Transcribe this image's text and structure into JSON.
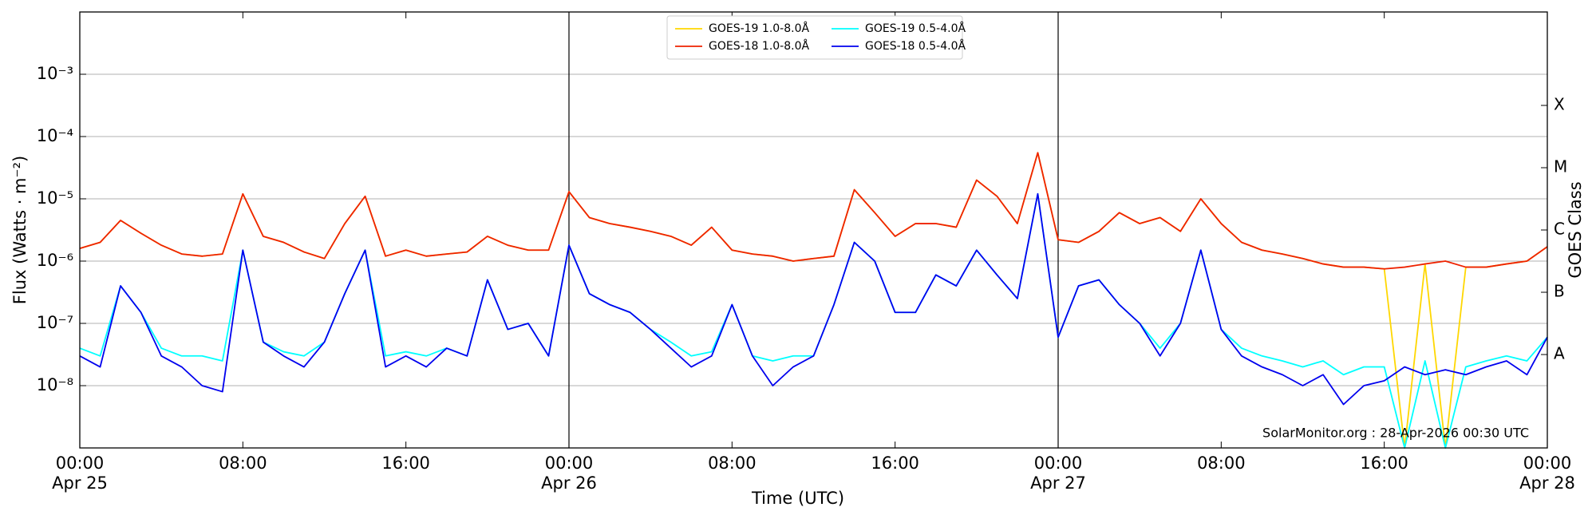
{
  "chart_data": {
    "type": "line",
    "x_label": "Time (UTC)",
    "y_label": "Flux (Watts · m⁻²)",
    "y2_label": "GOES Class",
    "annotation": "SolarMonitor.org : 28-Apr-2026 00:30 UTC",
    "log_scale": "y",
    "grid": "y",
    "legend": "upper center",
    "legend_columns": 2,
    "xlim": [
      "Apr 25 00:00",
      "Apr 28 00:00"
    ],
    "xticks": [
      {
        "value": "Apr 25 00:00",
        "label": [
          "00:00",
          "Apr 25"
        ]
      },
      {
        "value": "Apr 25 08:00",
        "label": "08:00"
      },
      {
        "value": "Apr 25 16:00",
        "label": "16:00"
      },
      {
        "value": "Apr 26 00:00",
        "label": [
          "00:00",
          "Apr 26"
        ]
      },
      {
        "value": "Apr 26 08:00",
        "label": "08:00"
      },
      {
        "value": "Apr 26 16:00",
        "label": "16:00"
      },
      {
        "value": "Apr 27 00:00",
        "label": [
          "00:00",
          "Apr 27"
        ]
      },
      {
        "value": "Apr 27 08:00",
        "label": "08:00"
      },
      {
        "value": "Apr 27 16:00",
        "label": "16:00"
      },
      {
        "value": "Apr 28 00:00",
        "label": [
          "00:00",
          "Apr 28"
        ]
      }
    ],
    "vlines": [
      "Apr 26 00:00",
      "Apr 27 00:00"
    ],
    "ylim": [
      1e-09,
      0.01
    ],
    "yticks": [
      {
        "value": 1e-08,
        "label": "10⁻⁸"
      },
      {
        "value": 1e-07,
        "label": "10⁻⁷"
      },
      {
        "value": 1e-06,
        "label": "10⁻⁶"
      },
      {
        "value": 1e-05,
        "label": "10⁻⁵"
      },
      {
        "value": 0.0001,
        "label": "10⁻⁴"
      },
      {
        "value": 0.001,
        "label": "10⁻³"
      }
    ],
    "y2lim": [
      1e-09,
      0.01
    ],
    "y2ticks": [
      {
        "value": 3.16e-08,
        "label": "A"
      },
      {
        "value": 3.16e-07,
        "label": "B"
      },
      {
        "value": 3.16e-06,
        "label": "C"
      },
      {
        "value": 3.16e-05,
        "label": "M"
      },
      {
        "value": 0.000316,
        "label": "X"
      }
    ],
    "x": [
      "Apr 25 00:00",
      "Apr 25 01:00",
      "Apr 25 02:00",
      "Apr 25 03:00",
      "Apr 25 04:00",
      "Apr 25 05:00",
      "Apr 25 06:00",
      "Apr 25 07:00",
      "Apr 25 08:00",
      "Apr 25 09:00",
      "Apr 25 10:00",
      "Apr 25 11:00",
      "Apr 25 12:00",
      "Apr 25 13:00",
      "Apr 25 14:00",
      "Apr 25 15:00",
      "Apr 25 16:00",
      "Apr 25 17:00",
      "Apr 25 18:00",
      "Apr 25 19:00",
      "Apr 25 20:00",
      "Apr 25 21:00",
      "Apr 25 22:00",
      "Apr 25 23:00",
      "Apr 26 00:00",
      "Apr 26 01:00",
      "Apr 26 02:00",
      "Apr 26 03:00",
      "Apr 26 04:00",
      "Apr 26 05:00",
      "Apr 26 06:00",
      "Apr 26 07:00",
      "Apr 26 08:00",
      "Apr 26 09:00",
      "Apr 26 10:00",
      "Apr 26 11:00",
      "Apr 26 12:00",
      "Apr 26 13:00",
      "Apr 26 14:00",
      "Apr 26 15:00",
      "Apr 26 16:00",
      "Apr 26 17:00",
      "Apr 26 18:00",
      "Apr 26 19:00",
      "Apr 26 20:00",
      "Apr 26 21:00",
      "Apr 26 22:00",
      "Apr 26 23:00",
      "Apr 27 00:00",
      "Apr 27 01:00",
      "Apr 27 02:00",
      "Apr 27 03:00",
      "Apr 27 04:00",
      "Apr 27 05:00",
      "Apr 27 06:00",
      "Apr 27 07:00",
      "Apr 27 08:00",
      "Apr 27 09:00",
      "Apr 27 10:00",
      "Apr 27 11:00",
      "Apr 27 12:00",
      "Apr 27 13:00",
      "Apr 27 14:00",
      "Apr 27 15:00",
      "Apr 27 16:00",
      "Apr 27 17:00",
      "Apr 27 18:00",
      "Apr 27 19:00",
      "Apr 27 20:00",
      "Apr 27 21:00",
      "Apr 27 22:00",
      "Apr 27 23:00",
      "Apr 28 00:00"
    ],
    "series": [
      {
        "name": "GOES-19 1.0-8.0Å",
        "color": "#ffd700",
        "values": [
          1.6e-06,
          2e-06,
          4.5e-06,
          2.8e-06,
          1.8e-06,
          1.3e-06,
          1.2e-06,
          1.3e-06,
          1.2e-05,
          2.5e-06,
          2e-06,
          1.4e-06,
          1.1e-06,
          4e-06,
          1.1e-05,
          1.2e-06,
          1.5e-06,
          1.2e-06,
          1.3e-06,
          1.4e-06,
          2.5e-06,
          1.8e-06,
          1.5e-06,
          1.5e-06,
          1.3e-05,
          5e-06,
          4e-06,
          3.5e-06,
          3e-06,
          2.5e-06,
          1.8e-06,
          3.5e-06,
          1.5e-06,
          1.3e-06,
          1.2e-06,
          1e-06,
          1.1e-06,
          1.2e-06,
          1.4e-05,
          6e-06,
          2.5e-06,
          4e-06,
          4e-06,
          3.5e-06,
          2e-05,
          1.1e-05,
          4e-06,
          5.5e-05,
          2.2e-06,
          2e-06,
          3e-06,
          6e-06,
          4e-06,
          5e-06,
          3e-06,
          1e-05,
          4e-06,
          2e-06,
          1.5e-06,
          1.3e-06,
          1.1e-06,
          9e-07,
          8e-07,
          8e-07,
          7.5e-07,
          1e-09,
          9e-07,
          1e-09,
          8e-07,
          8e-07,
          9e-07,
          1e-06,
          1.7e-06
        ]
      },
      {
        "name": "GOES-18 1.0-8.0Å",
        "color": "#ee2200",
        "values": [
          1.6e-06,
          2e-06,
          4.5e-06,
          2.8e-06,
          1.8e-06,
          1.3e-06,
          1.2e-06,
          1.3e-06,
          1.2e-05,
          2.5e-06,
          2e-06,
          1.4e-06,
          1.1e-06,
          4e-06,
          1.1e-05,
          1.2e-06,
          1.5e-06,
          1.2e-06,
          1.3e-06,
          1.4e-06,
          2.5e-06,
          1.8e-06,
          1.5e-06,
          1.5e-06,
          1.3e-05,
          5e-06,
          4e-06,
          3.5e-06,
          3e-06,
          2.5e-06,
          1.8e-06,
          3.5e-06,
          1.5e-06,
          1.3e-06,
          1.2e-06,
          1e-06,
          1.1e-06,
          1.2e-06,
          1.4e-05,
          6e-06,
          2.5e-06,
          4e-06,
          4e-06,
          3.5e-06,
          2e-05,
          1.1e-05,
          4e-06,
          5.5e-05,
          2.2e-06,
          2e-06,
          3e-06,
          6e-06,
          4e-06,
          5e-06,
          3e-06,
          1e-05,
          4e-06,
          2e-06,
          1.5e-06,
          1.3e-06,
          1.1e-06,
          9e-07,
          8e-07,
          8e-07,
          7.5e-07,
          8e-07,
          9e-07,
          1e-06,
          8e-07,
          8e-07,
          9e-07,
          1e-06,
          1.7e-06
        ]
      },
      {
        "name": "GOES-19 0.5-4.0Å",
        "color": "#00ffff",
        "values": [
          4e-08,
          3e-08,
          4e-07,
          1.5e-07,
          4e-08,
          3e-08,
          3e-08,
          2.5e-08,
          1.5e-06,
          5e-08,
          3.5e-08,
          3e-08,
          5e-08,
          3e-07,
          1.5e-06,
          3e-08,
          3.5e-08,
          3e-08,
          4e-08,
          3e-08,
          5e-07,
          8e-08,
          1e-07,
          3e-08,
          1.8e-06,
          3e-07,
          2e-07,
          1.5e-07,
          8e-08,
          5e-08,
          3e-08,
          3.5e-08,
          2e-07,
          3e-08,
          2.5e-08,
          3e-08,
          3e-08,
          2e-07,
          2e-06,
          1e-06,
          1.5e-07,
          1.5e-07,
          6e-07,
          4e-07,
          1.5e-06,
          6e-07,
          2.5e-07,
          1.2e-05,
          6e-08,
          4e-07,
          5e-07,
          2e-07,
          1e-07,
          4e-08,
          1e-07,
          1.5e-06,
          8e-08,
          4e-08,
          3e-08,
          2.5e-08,
          2e-08,
          2.5e-08,
          1.5e-08,
          2e-08,
          2e-08,
          1e-09,
          2.5e-08,
          1e-09,
          2e-08,
          2.5e-08,
          3e-08,
          2.5e-08,
          6e-08
        ]
      },
      {
        "name": "GOES-18 0.5-4.0Å",
        "color": "#0000ee",
        "values": [
          3e-08,
          2e-08,
          4e-07,
          1.5e-07,
          3e-08,
          2e-08,
          1e-08,
          8e-09,
          1.5e-06,
          5e-08,
          3e-08,
          2e-08,
          5e-08,
          3e-07,
          1.5e-06,
          2e-08,
          3e-08,
          2e-08,
          4e-08,
          3e-08,
          5e-07,
          8e-08,
          1e-07,
          3e-08,
          1.8e-06,
          3e-07,
          2e-07,
          1.5e-07,
          8e-08,
          4e-08,
          2e-08,
          3e-08,
          2e-07,
          3e-08,
          1e-08,
          2e-08,
          3e-08,
          2e-07,
          2e-06,
          1e-06,
          1.5e-07,
          1.5e-07,
          6e-07,
          4e-07,
          1.5e-06,
          6e-07,
          2.5e-07,
          1.2e-05,
          6e-08,
          4e-07,
          5e-07,
          2e-07,
          1e-07,
          3e-08,
          1e-07,
          1.5e-06,
          8e-08,
          3e-08,
          2e-08,
          1.5e-08,
          1e-08,
          1.5e-08,
          5e-09,
          1e-08,
          1.2e-08,
          2e-08,
          1.5e-08,
          1.8e-08,
          1.5e-08,
          2e-08,
          2.5e-08,
          1.5e-08,
          6e-08
        ]
      }
    ]
  }
}
